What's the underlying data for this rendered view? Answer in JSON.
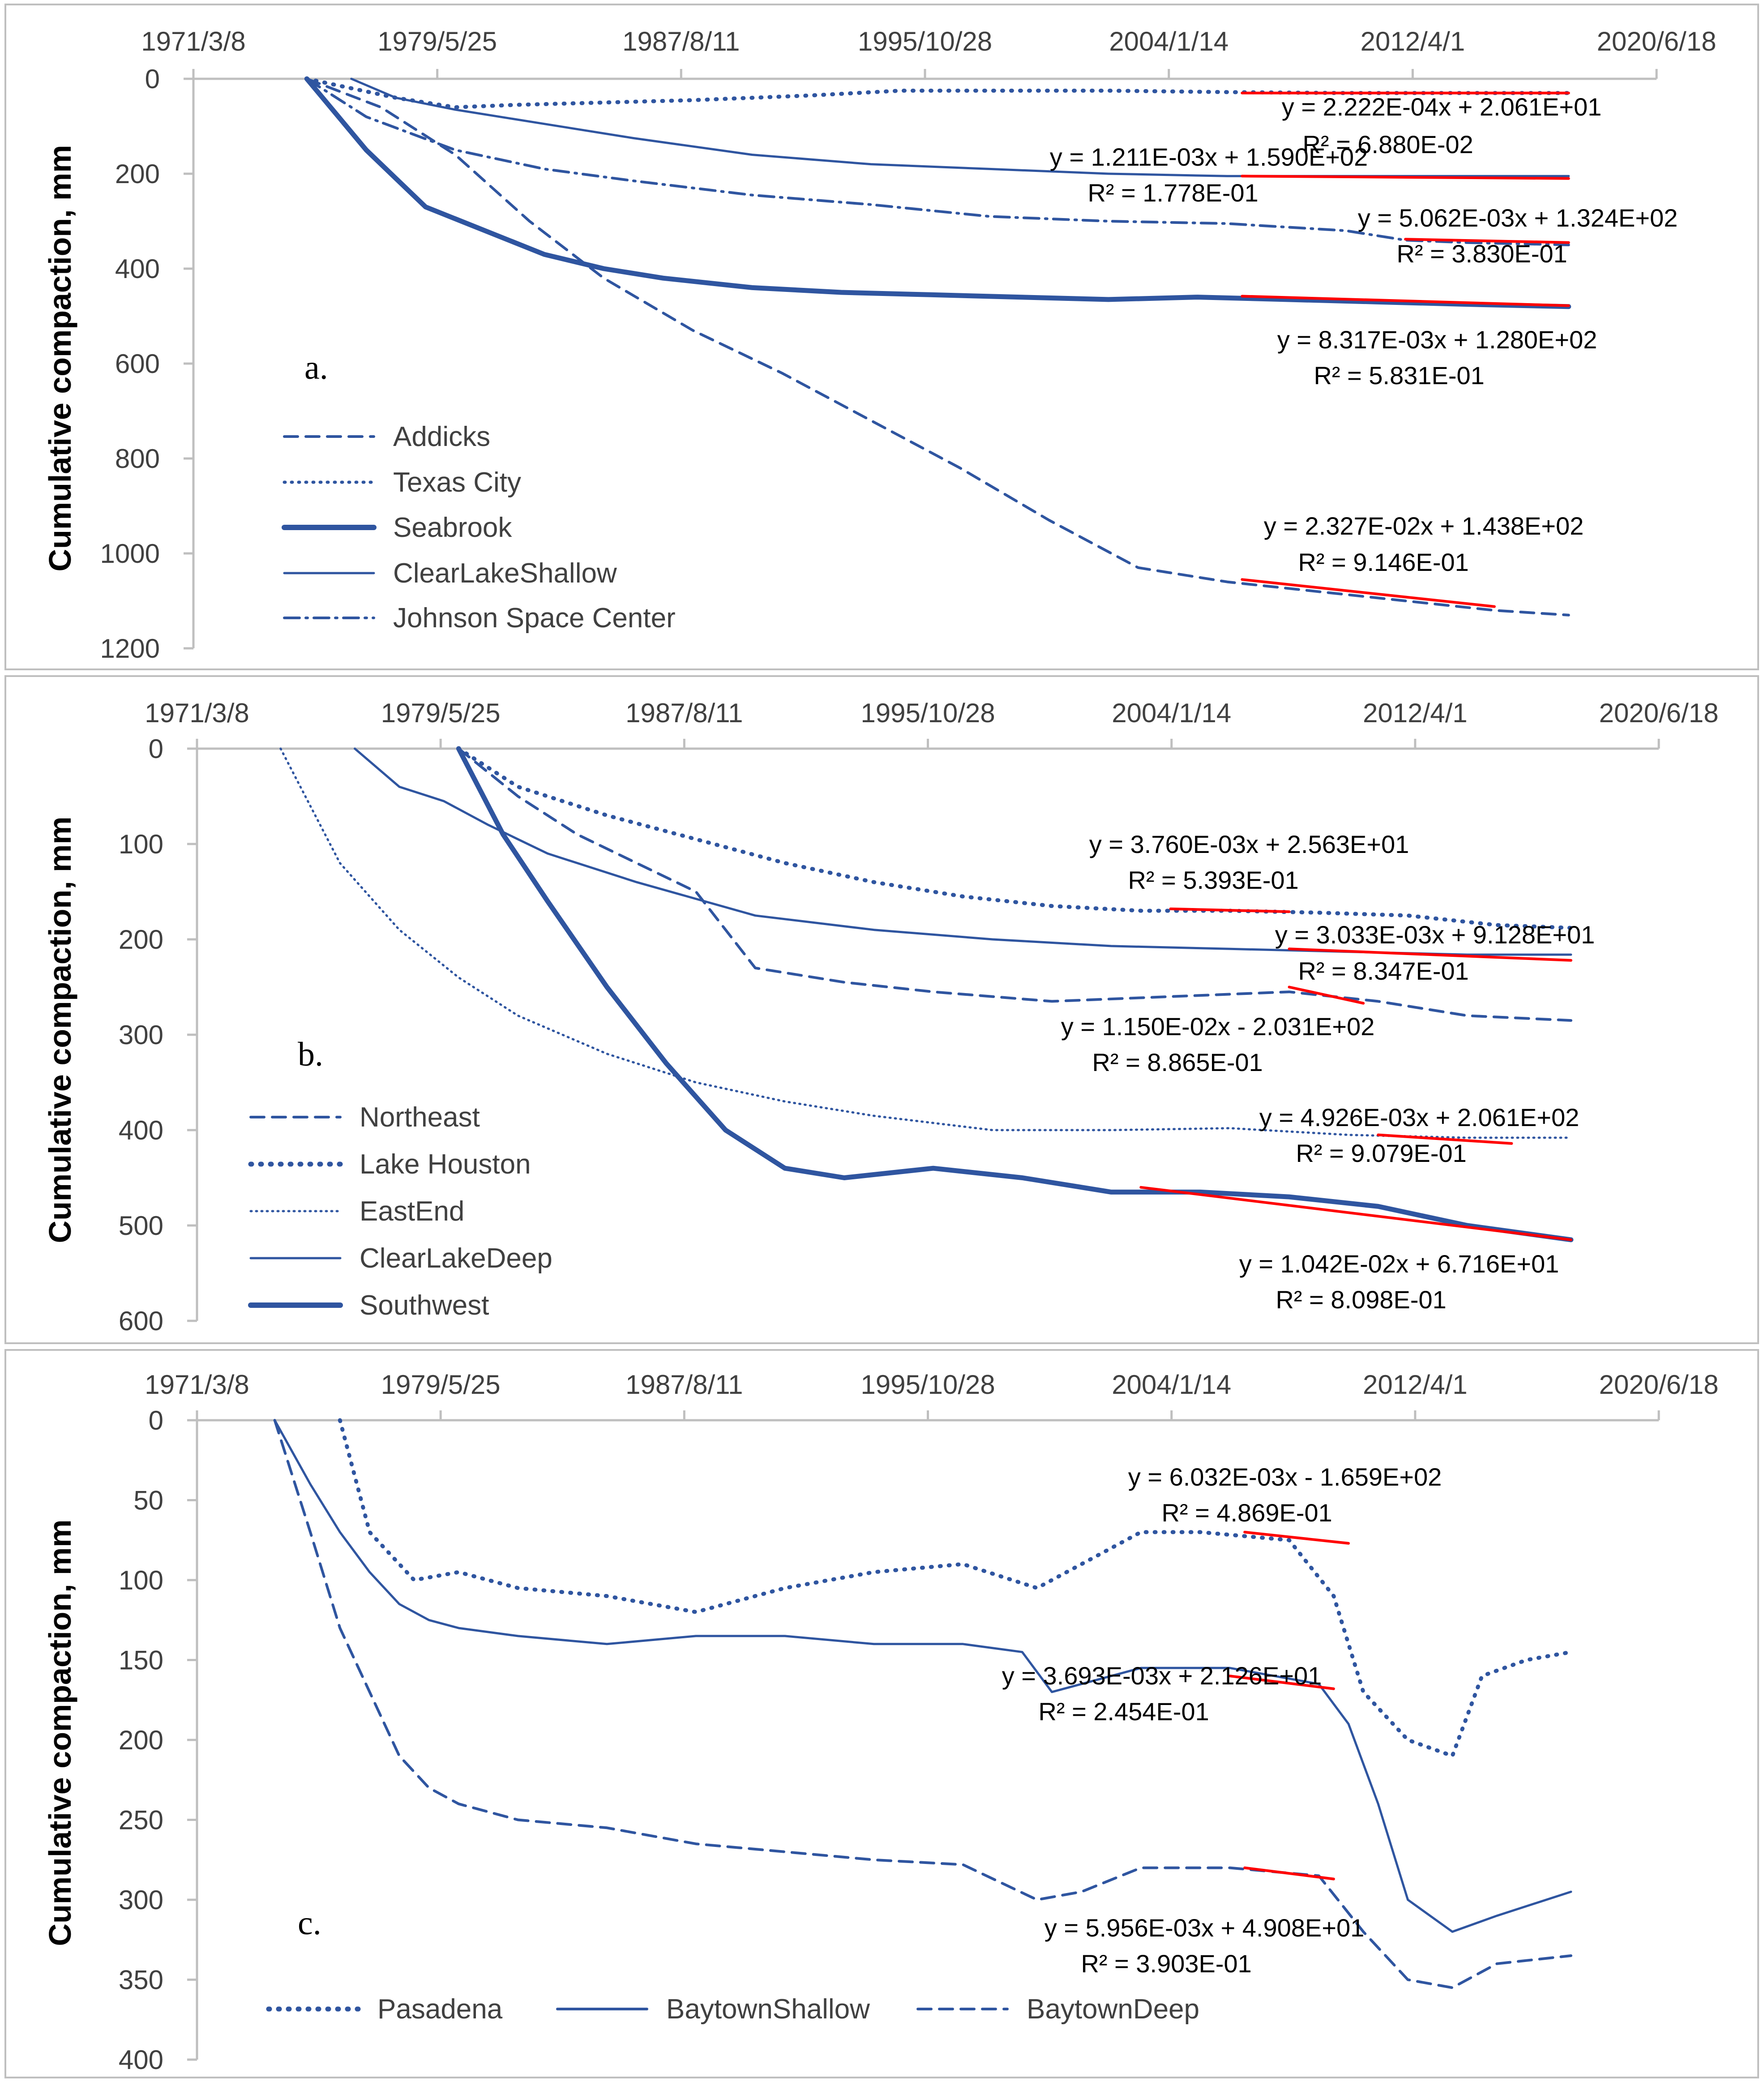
{
  "chart_data": [
    {
      "id": "a",
      "type": "line",
      "panel_label": "a.",
      "ylabel": "Cumulative compaction, mm",
      "ylim": [
        0,
        1200
      ],
      "y_ticks": [
        "0",
        "200",
        "400",
        "600",
        "800",
        "1000",
        "1200"
      ],
      "x_tick_labels": [
        "1971/3/8",
        "1979/5/25",
        "1987/8/11",
        "1995/10/28",
        "2004/1/14",
        "2012/4/1",
        "2020/6/18"
      ],
      "x_range": [
        1971.18,
        2020.46
      ],
      "legend": [
        "Addicks",
        "Texas City",
        "Seabrook",
        "ClearLakeShallow",
        "Johnson Space Center"
      ],
      "series": [
        {
          "name": "Addicks",
          "style": "dash-thin",
          "x": [
            1975.0,
            1977.5,
            1980.0,
            1982.5,
            1985.0,
            1988.0,
            1991.0,
            1994.0,
            1997.0,
            2000.0,
            2003.0,
            2006.0,
            2009.0,
            2012.0,
            2015.0,
            2017.5
          ],
          "y": [
            0,
            60,
            160,
            300,
            420,
            530,
            620,
            720,
            820,
            930,
            1030,
            1060,
            1080,
            1100,
            1120,
            1130
          ]
        },
        {
          "name": "Texas City",
          "style": "dot",
          "x": [
            1975.0,
            1978.0,
            1980.0,
            1982.0,
            1985.0,
            1988.0,
            1992.0,
            1995.0,
            1998.0,
            2002.0,
            2006.0,
            2010.0,
            2014.0,
            2017.5
          ],
          "y": [
            0,
            40,
            60,
            55,
            50,
            45,
            35,
            25,
            25,
            25,
            28,
            30,
            30,
            30
          ]
        },
        {
          "name": "Seabrook",
          "style": "solid-thick",
          "x": [
            1975.0,
            1977.0,
            1979.0,
            1981.0,
            1983.0,
            1985.0,
            1987.0,
            1990.0,
            1993.0,
            1996.0,
            1999.0,
            2002.0,
            2005.0,
            2008.0,
            2011.0,
            2014.0,
            2017.5
          ],
          "y": [
            0,
            150,
            270,
            320,
            370,
            400,
            420,
            440,
            450,
            455,
            460,
            465,
            460,
            465,
            470,
            475,
            480
          ]
        },
        {
          "name": "ClearLakeShallow",
          "style": "solid-thin",
          "x": [
            1976.5,
            1978.0,
            1980.0,
            1983.0,
            1986.0,
            1990.0,
            1994.0,
            1998.0,
            2002.0,
            2006.0,
            2010.0,
            2014.0,
            2017.5
          ],
          "y": [
            0,
            40,
            65,
            95,
            125,
            160,
            180,
            190,
            200,
            205,
            205,
            205,
            205
          ]
        },
        {
          "name": "Johnson Space Center",
          "style": "dashdot",
          "x": [
            1975.0,
            1977.0,
            1980.0,
            1983.0,
            1986.0,
            1990.0,
            1994.0,
            1998.0,
            2002.0,
            2006.0,
            2010.0,
            2012.0,
            2014.0,
            2017.5
          ],
          "y": [
            0,
            80,
            150,
            190,
            215,
            245,
            265,
            290,
            300,
            305,
            320,
            340,
            345,
            350
          ]
        }
      ],
      "trendlines": [
        {
          "x": [
            2006.5,
            2017.5
          ],
          "y": [
            30,
            30
          ]
        },
        {
          "x": [
            2006.5,
            2017.5
          ],
          "y": [
            205,
            210
          ]
        },
        {
          "x": [
            2012.0,
            2017.5
          ],
          "y": [
            338,
            345
          ]
        },
        {
          "x": [
            2006.5,
            2017.5
          ],
          "y": [
            458,
            478
          ]
        },
        {
          "x": [
            2006.5,
            2015.0
          ],
          "y": [
            1055,
            1112
          ]
        }
      ],
      "equations": [
        [
          "y = 2.222E-04x + 2.061E+01"
        ],
        [
          "R² = 6.880E-02"
        ],
        [
          "y = 1.211E-03x + 1.590E+02"
        ],
        [
          "R² = 1.778E-01"
        ],
        [
          "y = 5.062E-03x + 1.324E+02"
        ],
        [
          "R² = 3.830E-01"
        ],
        [
          "y = 8.317E-03x + 1.280E+02"
        ],
        [
          "R² = 5.831E-01"
        ],
        [
          "y = 2.327E-02x + 1.438E+02"
        ],
        [
          "R² = 9.146E-01"
        ]
      ]
    },
    {
      "id": "b",
      "type": "line",
      "panel_label": "b.",
      "ylabel": "Cumulative compaction, mm",
      "ylim": [
        0,
        600
      ],
      "y_ticks": [
        "0",
        "100",
        "200",
        "300",
        "400",
        "500",
        "600"
      ],
      "x_tick_labels": [
        "1971/3/8",
        "1979/5/25",
        "1987/8/11",
        "1995/10/28",
        "2004/1/14",
        "2012/4/1",
        "2020/6/18"
      ],
      "x_range": [
        1971.18,
        2020.46
      ],
      "legend": [
        "Northeast",
        "Lake Houston",
        "EastEnd",
        "ClearLakeDeep",
        "Southwest"
      ],
      "series": [
        {
          "name": "Northeast",
          "style": "dash-thin",
          "x": [
            1980.0,
            1982.0,
            1984.0,
            1986.0,
            1988.0,
            1990.0,
            1993.0,
            1996.0,
            2000.0,
            2004.0,
            2008.0,
            2011.0,
            2014.0,
            2017.5
          ],
          "y": [
            0,
            50,
            90,
            120,
            150,
            230,
            245,
            255,
            265,
            260,
            255,
            265,
            280,
            285
          ]
        },
        {
          "name": "Lake Houston",
          "style": "dot",
          "x": [
            1980.0,
            1982.0,
            1985.0,
            1988.0,
            1991.0,
            1994.0,
            1997.0,
            2000.0,
            2003.0,
            2006.0,
            2009.0,
            2012.0,
            2015.0,
            2017.5
          ],
          "y": [
            0,
            40,
            70,
            95,
            120,
            140,
            155,
            165,
            170,
            170,
            172,
            175,
            185,
            188
          ]
        },
        {
          "name": "EastEnd",
          "style": "dot-thin",
          "x": [
            1974.0,
            1976.0,
            1978.0,
            1980.0,
            1982.0,
            1985.0,
            1988.0,
            1991.0,
            1994.0,
            1998.0,
            2002.0,
            2006.0,
            2010.0,
            2014.0,
            2017.5
          ],
          "y": [
            0,
            120,
            190,
            240,
            280,
            320,
            350,
            370,
            385,
            400,
            400,
            398,
            405,
            408,
            408
          ]
        },
        {
          "name": "ClearLakeDeep",
          "style": "solid-thin",
          "x": [
            1976.5,
            1978.0,
            1979.5,
            1981.0,
            1983.0,
            1986.0,
            1990.0,
            1994.0,
            1998.0,
            2002.0,
            2006.0,
            2010.0,
            2014.0,
            2017.5
          ],
          "y": [
            0,
            40,
            55,
            80,
            110,
            140,
            175,
            190,
            200,
            207,
            210,
            213,
            216,
            216
          ]
        },
        {
          "name": "Southwest",
          "style": "solid-thick",
          "x": [
            1980.0,
            1981.5,
            1983.0,
            1985.0,
            1987.0,
            1989.0,
            1991.0,
            1993.0,
            1996.0,
            1999.0,
            2002.0,
            2005.0,
            2008.0,
            2011.0,
            2014.0,
            2017.5
          ],
          "y": [
            0,
            90,
            160,
            250,
            330,
            400,
            440,
            450,
            440,
            450,
            465,
            465,
            470,
            480,
            500,
            515
          ]
        }
      ],
      "trendlines": [
        {
          "x": [
            2004.0,
            2008.0
          ],
          "y": [
            168,
            171
          ]
        },
        {
          "x": [
            2008.0,
            2017.5
          ],
          "y": [
            210,
            222
          ]
        },
        {
          "x": [
            2008.0,
            2010.5
          ],
          "y": [
            250,
            267
          ]
        },
        {
          "x": [
            2011.0,
            2015.5
          ],
          "y": [
            405,
            414
          ]
        },
        {
          "x": [
            2003.0,
            2017.5
          ],
          "y": [
            460,
            515
          ]
        }
      ],
      "equations": [
        [
          "y = 3.760E-03x + 2.563E+01"
        ],
        [
          "R² = 5.393E-01"
        ],
        [
          "y = 3.033E-03x + 9.128E+01"
        ],
        [
          "R² = 8.347E-01"
        ],
        [
          "y = 1.150E-02x - 2.031E+02"
        ],
        [
          "R² = 8.865E-01"
        ],
        [
          "y = 4.926E-03x + 2.061E+02"
        ],
        [
          "R² = 9.079E-01"
        ],
        [
          "y = 1.042E-02x + 6.716E+01"
        ],
        [
          "R² = 8.098E-01"
        ]
      ]
    },
    {
      "id": "c",
      "type": "line",
      "panel_label": "c.",
      "ylabel": "Cumulative compaction, mm",
      "ylim": [
        0,
        400
      ],
      "y_ticks": [
        "0",
        "50",
        "100",
        "150",
        "200",
        "250",
        "300",
        "350",
        "400"
      ],
      "x_tick_labels": [
        "1971/3/8",
        "1979/5/25",
        "1987/8/11",
        "1995/10/28",
        "2004/1/14",
        "2012/4/1",
        "2020/6/18"
      ],
      "x_range": [
        1971.18,
        2020.46
      ],
      "legend": [
        "Pasadena",
        "BaytownShallow",
        "BaytownDeep"
      ],
      "series": [
        {
          "name": "Pasadena",
          "style": "dot",
          "x": [
            1976.0,
            1977.0,
            1978.5,
            1980.0,
            1982.0,
            1985.0,
            1988.0,
            1991.0,
            1994.0,
            1997.0,
            1999.5,
            2001.0,
            2003.0,
            2005.0,
            2008.0,
            2009.5,
            2010.5,
            2012.0,
            2013.5,
            2014.5,
            2016.0,
            2017.5
          ],
          "y": [
            0,
            70,
            100,
            95,
            105,
            110,
            120,
            105,
            95,
            90,
            105,
            90,
            70,
            70,
            75,
            110,
            170,
            200,
            210,
            160,
            150,
            145
          ]
        },
        {
          "name": "BaytownShallow",
          "style": "solid-thin",
          "x": [
            1973.8,
            1975.0,
            1976.0,
            1977.0,
            1978.0,
            1979.0,
            1980.0,
            1982.0,
            1985.0,
            1988.0,
            1991.0,
            1994.0,
            1997.0,
            1999.0,
            2000.0,
            2003.0,
            2006.0,
            2009.0,
            2010.0,
            2011.0,
            2012.0,
            2013.5,
            2015.0,
            2017.5
          ],
          "y": [
            0,
            40,
            70,
            95,
            115,
            125,
            130,
            135,
            140,
            135,
            135,
            140,
            140,
            145,
            170,
            155,
            155,
            165,
            190,
            240,
            300,
            320,
            310,
            295
          ]
        },
        {
          "name": "BaytownDeep",
          "style": "dash-thin",
          "x": [
            1973.8,
            1975.0,
            1976.0,
            1977.0,
            1978.0,
            1979.0,
            1980.0,
            1982.0,
            1985.0,
            1988.0,
            1991.0,
            1994.0,
            1997.0,
            1999.5,
            2001.0,
            2003.0,
            2006.0,
            2009.0,
            2010.5,
            2012.0,
            2013.5,
            2015.0,
            2017.5
          ],
          "y": [
            0,
            70,
            130,
            170,
            210,
            230,
            240,
            250,
            255,
            265,
            270,
            275,
            278,
            300,
            295,
            280,
            280,
            285,
            320,
            350,
            355,
            340,
            335
          ]
        }
      ],
      "trendlines": [
        {
          "x": [
            2006.5,
            2010.0
          ],
          "y": [
            70,
            77
          ]
        },
        {
          "x": [
            2006.0,
            2009.5
          ],
          "y": [
            160,
            168
          ]
        },
        {
          "x": [
            2006.5,
            2009.5
          ],
          "y": [
            280,
            287
          ]
        }
      ],
      "equations": [
        [
          "y = 6.032E-03x - 1.659E+02"
        ],
        [
          "R² = 4.869E-01"
        ],
        [
          "y = 3.693E-03x + 2.126E+01"
        ],
        [
          "R² = 2.454E-01"
        ],
        [
          "y = 5.956E-03x + 4.908E+01"
        ],
        [
          "R² = 3.903E-01"
        ]
      ]
    }
  ],
  "colors": {
    "series": "#2f55a0",
    "trend": "#ff0000",
    "axis": "#bfbfbf"
  }
}
